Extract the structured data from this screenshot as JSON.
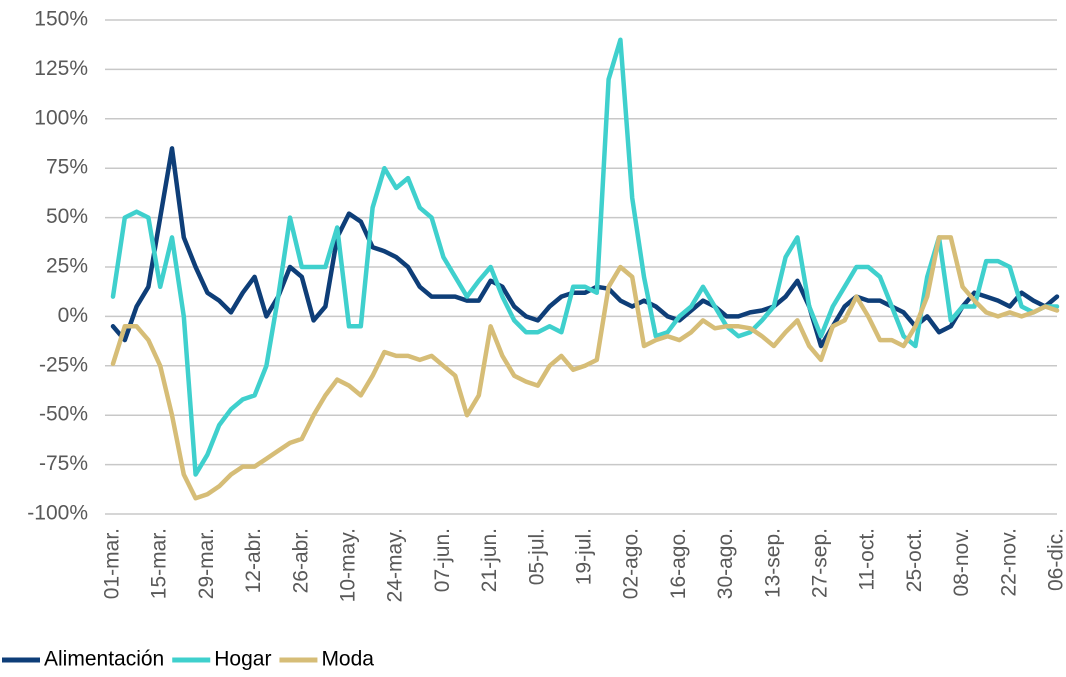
{
  "chart_data": {
    "type": "line",
    "categories": [
      "01-mar.",
      null,
      null,
      null,
      "15-mar.",
      null,
      null,
      null,
      "29-mar.",
      null,
      null,
      null,
      "12-abr.",
      null,
      null,
      null,
      "26-abr.",
      null,
      null,
      null,
      "10-may.",
      null,
      null,
      null,
      "24-may.",
      null,
      null,
      null,
      "07-jun.",
      null,
      null,
      null,
      "21-jun.",
      null,
      null,
      null,
      "05-jul.",
      null,
      null,
      null,
      "19-jul.",
      null,
      null,
      null,
      "02-ago.",
      null,
      null,
      null,
      "16-ago.",
      null,
      null,
      null,
      "30-ago.",
      null,
      null,
      null,
      "13-sep.",
      null,
      null,
      null,
      "27-sep.",
      null,
      null,
      null,
      "11-oct.",
      null,
      null,
      null,
      "25-oct.",
      null,
      null,
      null,
      "08-nov.",
      null,
      null,
      null,
      "22-nov.",
      null,
      null,
      null,
      "06-dic."
    ],
    "series": [
      {
        "name": "Alimentación",
        "color": "#0e3e78",
        "values": [
          -5,
          -12,
          5,
          15,
          50,
          85,
          40,
          25,
          12,
          8,
          2,
          12,
          20,
          0,
          10,
          25,
          20,
          -2,
          5,
          40,
          52,
          48,
          35,
          33,
          30,
          25,
          15,
          10,
          10,
          10,
          8,
          8,
          18,
          15,
          5,
          0,
          -2,
          5,
          10,
          12,
          12,
          15,
          14,
          8,
          5,
          8,
          5,
          0,
          -2,
          3,
          8,
          5,
          0,
          0,
          2,
          3,
          5,
          10,
          18,
          5,
          -15,
          -5,
          5,
          10,
          8,
          8,
          5,
          2,
          -5,
          0,
          -8,
          -5,
          5,
          12,
          10,
          8,
          5,
          12,
          8,
          5,
          10
        ]
      },
      {
        "name": "Hogar",
        "color": "#3fd0cd",
        "values": [
          10,
          50,
          53,
          50,
          15,
          40,
          0,
          -80,
          -70,
          -55,
          -47,
          -42,
          -40,
          -25,
          10,
          50,
          25,
          25,
          25,
          45,
          -5,
          -5,
          55,
          75,
          65,
          70,
          55,
          50,
          30,
          20,
          10,
          18,
          25,
          10,
          -2,
          -8,
          -8,
          -5,
          -8,
          15,
          15,
          12,
          120,
          140,
          60,
          20,
          -10,
          -8,
          0,
          5,
          15,
          5,
          -5,
          -10,
          -8,
          -2,
          5,
          30,
          40,
          5,
          -10,
          5,
          15,
          25,
          25,
          20,
          5,
          -10,
          -15,
          20,
          40,
          -2,
          5,
          5,
          28,
          28,
          25,
          5,
          2,
          5,
          5
        ]
      },
      {
        "name": "Moda",
        "color": "#d6bd77",
        "values": [
          -24,
          -5,
          -5,
          -12,
          -25,
          -50,
          -80,
          -92,
          -90,
          -86,
          -80,
          -76,
          -76,
          -72,
          -68,
          -64,
          -62,
          -50,
          -40,
          -32,
          -35,
          -40,
          -30,
          -18,
          -20,
          -20,
          -22,
          -20,
          -25,
          -30,
          -50,
          -40,
          -5,
          -20,
          -30,
          -33,
          -35,
          -25,
          -20,
          -27,
          -25,
          -22,
          15,
          25,
          20,
          -15,
          -12,
          -10,
          -12,
          -8,
          -2,
          -6,
          -5,
          -5,
          -6,
          -10,
          -15,
          -8,
          -2,
          -15,
          -22,
          -5,
          -2,
          10,
          0,
          -12,
          -12,
          -15,
          -5,
          10,
          40,
          40,
          15,
          8,
          2,
          0,
          2,
          0,
          2,
          5,
          3
        ]
      }
    ],
    "ylim": [
      -100,
      150
    ],
    "yticks": [
      {
        "value": -100,
        "label": "-100%"
      },
      {
        "value": -75,
        "label": "-75%"
      },
      {
        "value": -50,
        "label": "-50%"
      },
      {
        "value": -25,
        "label": "-25%"
      },
      {
        "value": 0,
        "label": "0%"
      },
      {
        "value": 25,
        "label": "25%"
      },
      {
        "value": 50,
        "label": "50%"
      },
      {
        "value": 75,
        "label": "75%"
      },
      {
        "value": 100,
        "label": "100%"
      },
      {
        "value": 125,
        "label": "125%"
      },
      {
        "value": 150,
        "label": "150%"
      }
    ],
    "grid": true,
    "legend": "bottom-left"
  }
}
